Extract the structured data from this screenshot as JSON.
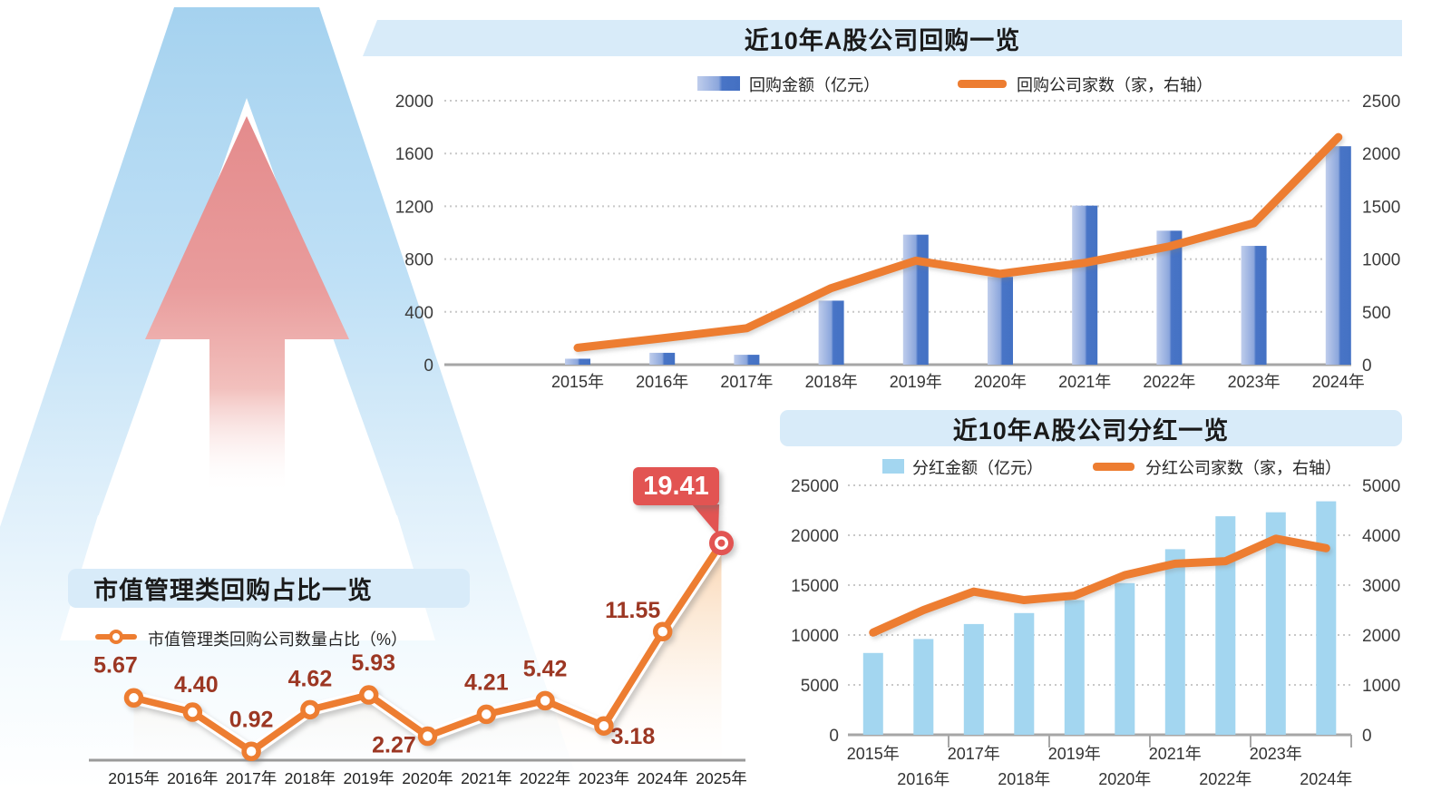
{
  "colors": {
    "accent_orange": "#ED7D31",
    "buyback_bar_dark": "#4472C4",
    "buyback_bar_light": "#BFCDEC",
    "dividend_bar": "#A3D6F0",
    "title_band_blue": "#D8EBF9",
    "data_label_maroon": "#9C3723",
    "highlight_red": "#E25452",
    "axis_text": "#3C3C3C",
    "baseline_gray": "#A6A6A6",
    "gridline_gray": "#C8C8C8",
    "watermark_blue": "#A5D2EF",
    "watermark_pink": "#E48B8C"
  },
  "chart_data": [
    {
      "id": "buyback",
      "type": "bar",
      "title": "近10年A股公司回购一览",
      "categories": [
        "2015年",
        "2016年",
        "2017年",
        "2018年",
        "2019年",
        "2020年",
        "2021年",
        "2022年",
        "2023年",
        "2024年"
      ],
      "series": [
        {
          "name": "回购金额（亿元）",
          "type": "bar",
          "axis": "left",
          "values": [
            45,
            90,
            75,
            485,
            985,
            665,
            1205,
            1015,
            900,
            1655
          ]
        },
        {
          "name": "回购公司家数（家，右轴）",
          "type": "line",
          "axis": "right",
          "values": [
            160,
            250,
            345,
            725,
            985,
            860,
            965,
            1120,
            1340,
            2155
          ]
        }
      ],
      "left_axis": {
        "min": 0,
        "max": 2000,
        "ticks": [
          2000,
          1600,
          1200,
          800,
          400,
          0
        ]
      },
      "right_axis": {
        "min": 0,
        "max": 2500,
        "ticks": [
          2500,
          2000,
          1500,
          1000,
          500,
          0
        ]
      },
      "grid": "dotted-horizontal",
      "legend_position": "top"
    },
    {
      "id": "dividend",
      "type": "bar",
      "title": "近10年A股公司分红一览",
      "categories": [
        "2015年",
        "2016年",
        "2017年",
        "2018年",
        "2019年",
        "2020年",
        "2021年",
        "2022年",
        "2023年",
        "2024年"
      ],
      "series": [
        {
          "name": "分红金额（亿元）",
          "type": "bar",
          "axis": "left",
          "values": [
            8200,
            9600,
            11100,
            12200,
            13500,
            15200,
            18600,
            21900,
            22300,
            23400
          ]
        },
        {
          "name": "分红公司家数（家，右轴）",
          "type": "line",
          "axis": "right",
          "values": [
            2050,
            2500,
            2870,
            2700,
            2790,
            3200,
            3430,
            3480,
            3930,
            3740
          ]
        }
      ],
      "left_axis": {
        "min": 0,
        "max": 25000,
        "ticks": [
          25000,
          20000,
          15000,
          10000,
          5000,
          0
        ]
      },
      "right_axis": {
        "min": 0,
        "max": 5000,
        "ticks": [
          5000,
          4000,
          3000,
          2000,
          1000,
          0
        ]
      },
      "grid": "dotted-horizontal",
      "legend_position": "top",
      "x_axis_staggered": true
    },
    {
      "id": "ratio",
      "type": "line",
      "title": "市值管理类回购占比一览",
      "categories": [
        "2015年",
        "2016年",
        "2017年",
        "2018年",
        "2019年",
        "2020年",
        "2021年",
        "2022年",
        "2023年",
        "2024年",
        "2025年"
      ],
      "series": [
        {
          "name": "市值管理类回购公司数量占比（%）",
          "type": "line",
          "values": [
            5.67,
            4.4,
            0.92,
            4.62,
            5.93,
            2.27,
            4.21,
            5.42,
            3.18,
            11.55,
            19.41
          ],
          "point_labels": [
            "5.67",
            "4.40",
            "0.92",
            "4.62",
            "5.93",
            "2.27",
            "4.21",
            "5.42",
            "3.18",
            "11.55",
            "19.41"
          ]
        }
      ],
      "highlight": {
        "index": 10,
        "label": "19.41"
      },
      "y_axis": {
        "visible": false
      },
      "area_fill": true,
      "legend_position": "top-left"
    }
  ]
}
